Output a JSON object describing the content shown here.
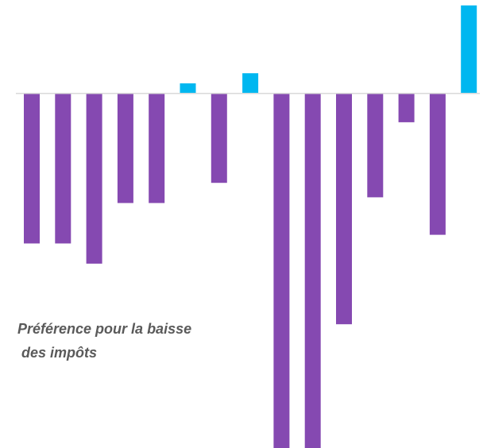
{
  "chart_data": {
    "type": "bar",
    "categories": [
      "",
      "",
      "",
      "",
      "",
      "",
      "",
      "",
      "",
      "",
      "",
      "",
      "",
      "",
      ""
    ],
    "values": [
      -52,
      -52,
      -59,
      -38,
      -38,
      3.5,
      -31,
      7,
      -123,
      -123,
      -80,
      -36,
      -10,
      -49,
      30.5
    ],
    "ylim": [
      -124,
      31
    ],
    "grid": false,
    "colors": {
      "negative": "#8549b1",
      "positive": "#00b7f0",
      "baseline": "#d9d9d9"
    },
    "annotations": [
      {
        "text": "Préférence pour la baisse\n des impôts"
      }
    ]
  }
}
